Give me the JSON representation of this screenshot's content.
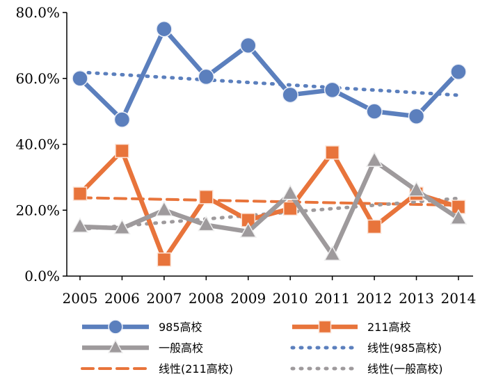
{
  "chart_data": {
    "type": "line",
    "x": [
      "2005",
      "2006",
      "2007",
      "2008",
      "2009",
      "2010",
      "2011",
      "2012",
      "2013",
      "2014"
    ],
    "ylim": [
      0,
      80
    ],
    "yticks": [
      "0.0%",
      "20.0%",
      "40.0%",
      "60.0%",
      "80.0%"
    ],
    "grid": false,
    "series": [
      {
        "name": "985高校",
        "color": "#5b7fbd",
        "marker": "circle",
        "values": [
          60,
          47.5,
          75,
          60.5,
          70,
          55,
          56.5,
          50,
          48.5,
          62
        ]
      },
      {
        "name": "211高校",
        "color": "#e8743b",
        "marker": "square",
        "values": [
          25,
          38,
          5,
          24,
          17,
          20.5,
          37.5,
          15,
          25,
          21
        ]
      },
      {
        "name": "一般高校",
        "color": "#9e9a9c",
        "marker": "triangle",
        "values": [
          15,
          14.5,
          20,
          15.5,
          13.5,
          25,
          6.5,
          35,
          26,
          17.5
        ]
      }
    ],
    "trendlines": [
      {
        "name": "线性(985高校)",
        "color": "#5b7fbd",
        "style": "dotted",
        "values": [
          61.9,
          54.9
        ]
      },
      {
        "name": "线性(211高校)",
        "color": "#e8743b",
        "style": "dashed",
        "values": [
          23.8,
          21.5
        ]
      },
      {
        "name": "线性(一般高校)",
        "color": "#9e9a9c",
        "style": "dotted",
        "values": [
          14.2,
          23.6
        ]
      }
    ],
    "legend_position": "bottom"
  }
}
